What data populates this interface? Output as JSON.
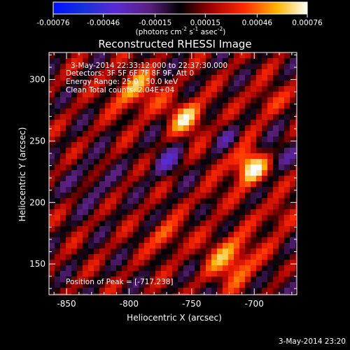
{
  "colorbar": {
    "tick_labels": [
      "-0.00076",
      "-0.00046",
      "-0.00015",
      "0.00015",
      "0.00046",
      "0.00076"
    ],
    "tick_values": [
      -0.00076,
      -0.00046,
      -0.00015,
      0.00015,
      0.00046,
      0.00076
    ],
    "unit_label": "(photons cm",
    "unit_sup1": "-2",
    "unit_mid1": " s",
    "unit_sup2": "-1",
    "unit_mid2": " asec",
    "unit_sup3": "-2",
    "unit_close": ")"
  },
  "annotations": {
    "time_range": "3-May-2014 22:33:12.000 to 22:37:30.000",
    "detectors": "Detectors: 3F 5F 6F 7F 8F 9F, Att 0",
    "energy_range": "Energy Range: 25.0 - 50.0 keV",
    "clean_info": "Clean     Total counts: 2.04E+04",
    "peak_position": "Position of Peak = [-717,238]"
  },
  "footer": {
    "timestamp": "3-May-2014 23:20"
  },
  "chart_data": {
    "type": "heatmap",
    "title": "Reconstructed RHESSI Image",
    "xlabel": "Heliocentric X (arcsec)",
    "ylabel": "Heliocentric Y (arcsec)",
    "x_ticks": [
      -850,
      -800,
      -750,
      -700
    ],
    "x_tick_labels": [
      "-850",
      "-800",
      "-750",
      "-700"
    ],
    "y_ticks": [
      150,
      200,
      250,
      300
    ],
    "y_tick_labels": [
      "150",
      "200",
      "250",
      "300"
    ],
    "xlim": [
      -864,
      -666
    ],
    "ylim": [
      125,
      322
    ],
    "peak": [
      -717,
      238
    ],
    "colormap": "rhessi-blue-to-white",
    "value_range": [
      -0.00076,
      0.00076
    ]
  }
}
